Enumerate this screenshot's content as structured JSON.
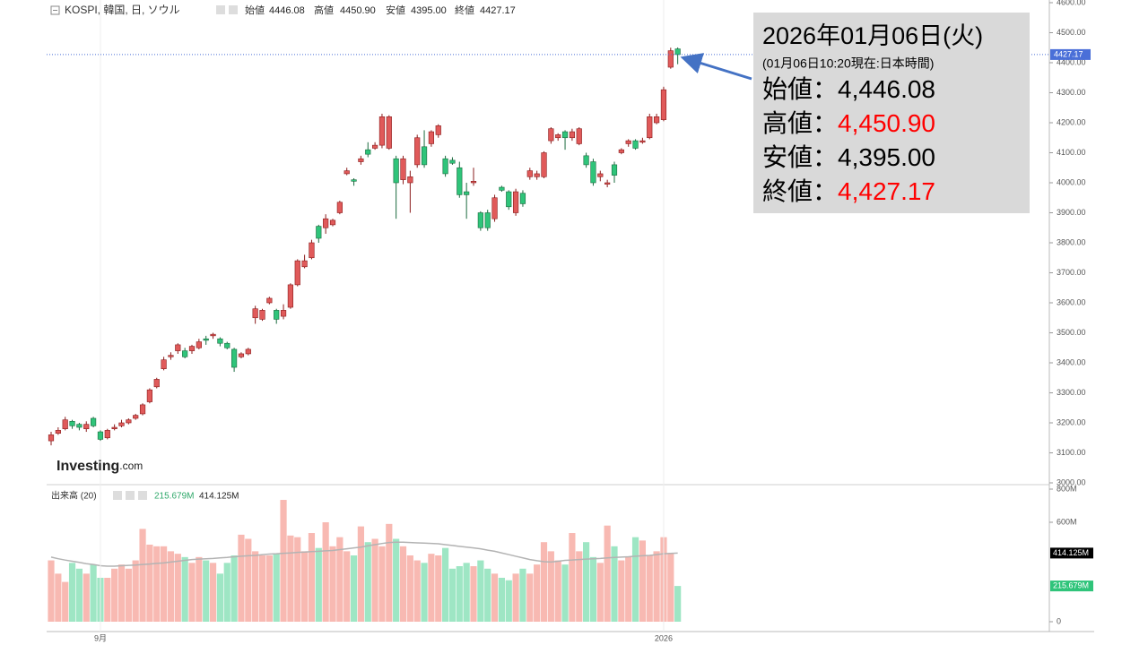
{
  "chart_data": [
    {
      "type": "candlestick",
      "header": {
        "symbol": "KOSPI, 韓国, 日, ソウル",
        "labels": [
          "始値",
          "高値",
          "安値",
          "終値"
        ],
        "values": [
          "4446.08",
          "4450.90",
          "4395.00",
          "4427.17"
        ]
      },
      "categories": [
        null,
        null,
        null,
        null,
        null,
        null,
        null,
        "9月",
        null,
        null,
        null,
        null,
        null,
        null,
        null,
        null,
        null,
        null,
        null,
        null,
        null,
        null,
        null,
        null,
        null,
        null,
        null,
        null,
        null,
        null,
        null,
        null,
        null,
        null,
        null,
        null,
        null,
        null,
        null,
        null,
        null,
        null,
        null,
        null,
        null,
        null,
        null,
        null,
        null,
        null,
        null,
        null,
        null,
        null,
        null,
        null,
        null,
        null,
        null,
        null,
        null,
        null,
        null,
        null,
        null,
        null,
        null,
        null,
        null,
        null,
        null,
        null,
        null,
        null,
        null,
        null,
        null,
        null,
        null,
        null,
        null,
        null,
        null,
        null,
        null,
        null,
        null,
        "2026",
        null,
        null
      ],
      "open": [
        3140,
        3165,
        3180,
        3205,
        3195,
        3180,
        3215,
        3170,
        3150,
        3180,
        3190,
        3200,
        3215,
        3230,
        3270,
        3320,
        3380,
        3420,
        3440,
        3440,
        3440,
        3450,
        3480,
        3490,
        3480,
        3465,
        3445,
        3420,
        3430,
        3550,
        3545,
        3600,
        3575,
        3555,
        3585,
        3660,
        3720,
        3750,
        3855,
        3850,
        3860,
        3900,
        4030,
        4010,
        4070,
        4110,
        4115,
        4125,
        4115,
        4080,
        4010,
        4000,
        4060,
        4120,
        4130,
        4160,
        4080,
        4075,
        4050,
        3970,
        4000,
        3900,
        3900,
        3880,
        3985,
        3970,
        3900,
        3965,
        4020,
        4020,
        4020,
        4140,
        4150,
        4170,
        4150,
        4130,
        4090,
        4070,
        4020,
        3995,
        4060,
        4100,
        4130,
        4140,
        4135,
        4150,
        4200,
        4210,
        4385,
        4446.08
      ],
      "high": [
        3170,
        3185,
        3220,
        3210,
        3200,
        3205,
        3220,
        3175,
        3180,
        3195,
        3210,
        3215,
        3230,
        3265,
        3315,
        3350,
        3420,
        3435,
        3465,
        3450,
        3460,
        3480,
        3490,
        3500,
        3485,
        3470,
        3450,
        3435,
        3450,
        3590,
        3580,
        3620,
        3580,
        3595,
        3665,
        3745,
        3760,
        3810,
        3860,
        3895,
        3880,
        3940,
        4050,
        4015,
        4090,
        4135,
        4135,
        4230,
        4225,
        4090,
        4090,
        4040,
        4160,
        4175,
        4175,
        4195,
        4090,
        4085,
        4070,
        4000,
        4050,
        3905,
        3910,
        3960,
        3990,
        3975,
        3980,
        3975,
        4050,
        4040,
        4105,
        4185,
        4165,
        4175,
        4180,
        4185,
        4100,
        4080,
        4040,
        4010,
        4070,
        4115,
        4145,
        4145,
        4150,
        4230,
        4230,
        4320,
        4450,
        4450.9
      ],
      "low": [
        3125,
        3160,
        3175,
        3180,
        3175,
        3170,
        3185,
        3140,
        3145,
        3175,
        3185,
        3195,
        3210,
        3225,
        3265,
        3315,
        3375,
        3410,
        3430,
        3415,
        3430,
        3445,
        3460,
        3480,
        3455,
        3445,
        3370,
        3415,
        3425,
        3530,
        3540,
        3595,
        3530,
        3545,
        3580,
        3655,
        3715,
        3745,
        3800,
        3830,
        3855,
        3895,
        4025,
        3990,
        4060,
        4085,
        4110,
        4115,
        4110,
        3880,
        3995,
        3900,
        4050,
        4050,
        4120,
        4150,
        4020,
        4060,
        3950,
        3880,
        3990,
        3840,
        3840,
        3870,
        3970,
        3910,
        3890,
        3920,
        4010,
        4010,
        4015,
        4130,
        4140,
        4110,
        4140,
        4125,
        4050,
        3990,
        4005,
        3985,
        4000,
        4095,
        4120,
        4110,
        4130,
        4145,
        4195,
        4205,
        4380,
        4395.0
      ],
      "close": [
        3160,
        3175,
        3210,
        3190,
        3185,
        3195,
        3190,
        3145,
        3175,
        3185,
        3200,
        3210,
        3225,
        3260,
        3310,
        3345,
        3410,
        3425,
        3460,
        3420,
        3455,
        3470,
        3475,
        3495,
        3465,
        3450,
        3385,
        3430,
        3445,
        3580,
        3575,
        3615,
        3545,
        3575,
        3660,
        3740,
        3740,
        3800,
        3815,
        3880,
        3875,
        3935,
        4040,
        4005,
        4080,
        4095,
        4125,
        4220,
        4220,
        4000,
        4080,
        4020,
        4150,
        4060,
        4170,
        4190,
        4030,
        4065,
        3960,
        3960,
        4005,
        3850,
        3850,
        3950,
        3975,
        3920,
        3970,
        3930,
        4040,
        4030,
        4100,
        4180,
        4160,
        4150,
        4170,
        4180,
        4060,
        4000,
        4030,
        4000,
        4025,
        4110,
        4140,
        4115,
        4140,
        4220,
        4220,
        4310,
        4440,
        4427.17
      ],
      "last_label": "4427.17",
      "up_color": "#e05a5a",
      "up_edge": "#8a1c1c",
      "down_color": "#2fc47a",
      "down_edge": "#1b6b3f",
      "last_color": "#4a6fd8",
      "ylim": [
        3000,
        4600
      ],
      "yticks": [
        {
          "value": 3000,
          "label": "3000.00"
        },
        {
          "value": 3100,
          "label": "3100.00"
        },
        {
          "value": 3200,
          "label": "3200.00"
        },
        {
          "value": 3300,
          "label": "3300.00"
        },
        {
          "value": 3400,
          "label": "3400.00"
        },
        {
          "value": 3500,
          "label": "3500.00"
        },
        {
          "value": 3600,
          "label": "3600.00"
        },
        {
          "value": 3700,
          "label": "3700.00"
        },
        {
          "value": 3800,
          "label": "3800.00"
        },
        {
          "value": 3900,
          "label": "3900.00"
        },
        {
          "value": 4000,
          "label": "4000.00"
        },
        {
          "value": 4100,
          "label": "4100.00"
        },
        {
          "value": 4200,
          "label": "4200.00"
        },
        {
          "value": 4300,
          "label": "4300.00"
        },
        {
          "value": 4400,
          "label": "4400.00"
        },
        {
          "value": 4500,
          "label": "4500.00"
        },
        {
          "value": 4600,
          "label": "4600.00"
        }
      ],
      "logo": {
        "main": "Investing",
        "suffix": ".com"
      },
      "annotation": {
        "title": "2026年01月06日(火)",
        "subtitle": "(01月06日10:20現在:日本時間)",
        "rows": [
          {
            "label": "始値：",
            "value": "4,446.08",
            "color": "#000000"
          },
          {
            "label": "高値：",
            "value": "4,450.90",
            "color": "#ff0000"
          },
          {
            "label": "安値：",
            "value": "4,395.00",
            "color": "#000000"
          },
          {
            "label": "終値：",
            "value": "4,427.17",
            "color": "#ff0000"
          }
        ]
      }
    },
    {
      "type": "bar",
      "title": "出来高 (20)",
      "volume": [
        370,
        290,
        240,
        355,
        320,
        290,
        345,
        265,
        265,
        320,
        345,
        320,
        370,
        560,
        465,
        455,
        455,
        425,
        410,
        390,
        355,
        390,
        370,
        355,
        290,
        355,
        400,
        525,
        500,
        425,
        400,
        400,
        410,
        735,
        520,
        510,
        425,
        535,
        445,
        600,
        455,
        510,
        425,
        400,
        575,
        480,
        500,
        455,
        590,
        500,
        455,
        400,
        370,
        355,
        410,
        400,
        445,
        320,
        335,
        355,
        335,
        370,
        320,
        290,
        265,
        250,
        290,
        320,
        290,
        345,
        480,
        425,
        370,
        345,
        535,
        425,
        480,
        390,
        355,
        580,
        455,
        370,
        390,
        510,
        490,
        400,
        425,
        510,
        415,
        215.679
      ],
      "ma": [
        390,
        380,
        372,
        365,
        358,
        350,
        345,
        338,
        335,
        335,
        338,
        340,
        342,
        345,
        348,
        352,
        355,
        360,
        365,
        370,
        375,
        378,
        380,
        382,
        385,
        388,
        392,
        395,
        398,
        400,
        405,
        408,
        410,
        413,
        415,
        418,
        420,
        423,
        425,
        428,
        430,
        435,
        440,
        445,
        450,
        458,
        465,
        472,
        478,
        480,
        480,
        478,
        476,
        474,
        472,
        470,
        465,
        460,
        455,
        450,
        445,
        440,
        432,
        425,
        415,
        405,
        395,
        385,
        375,
        368,
        362,
        360,
        365,
        370,
        372,
        375,
        378,
        380,
        382,
        385,
        388,
        390,
        392,
        395,
        398,
        400,
        405,
        410,
        412,
        414.125
      ],
      "volume_label": "215.679M",
      "ma_label": "414.125M",
      "up_color": "#f8b9b2",
      "down_color": "#9ee6c4",
      "ma_color": "#b3b3b3",
      "volume_tag_color": "#2fc47a",
      "ma_tag_color": "#000000",
      "ylim": [
        0,
        800
      ],
      "yticks": [
        {
          "value": 0,
          "label": "0"
        },
        {
          "value": 600,
          "label": "600M"
        },
        {
          "value": 800,
          "label": "800M"
        }
      ]
    }
  ]
}
